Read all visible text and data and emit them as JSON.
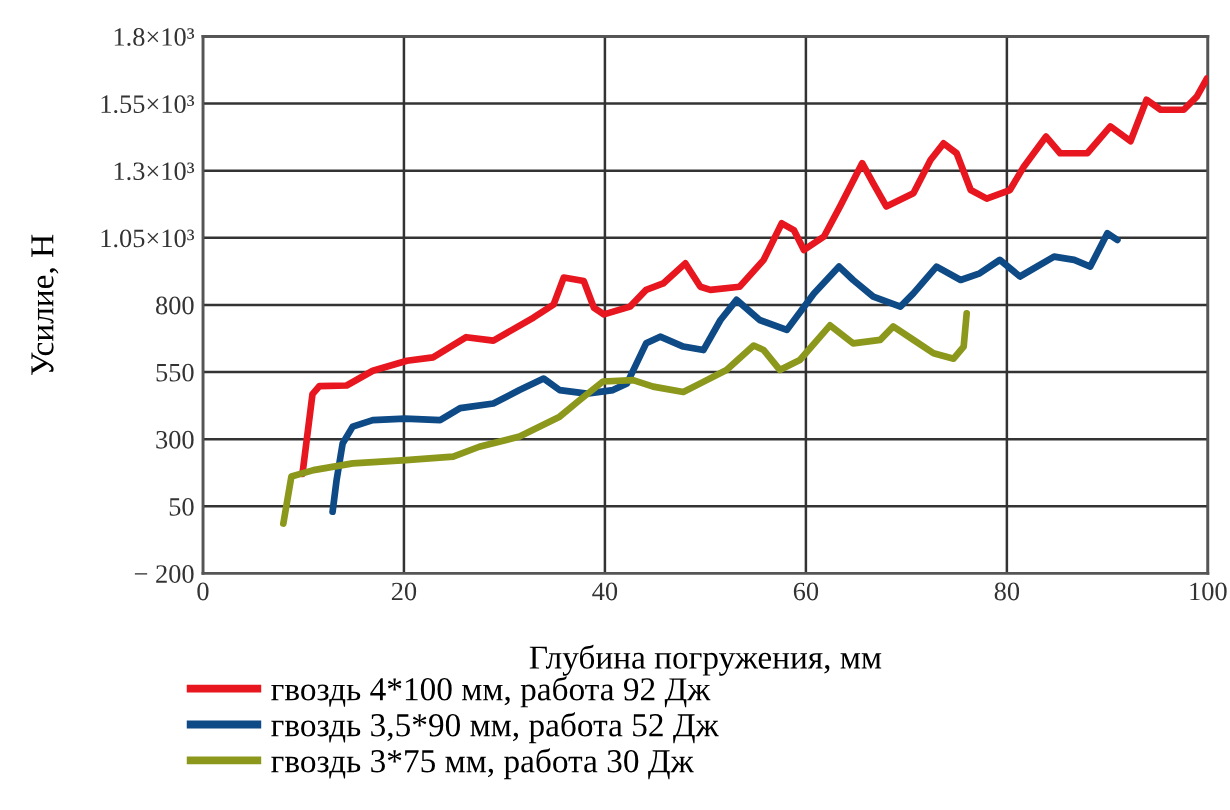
{
  "chart_data": {
    "type": "line",
    "xlabel": "Глубина погружения, мм",
    "ylabel": "Усилие, Н",
    "xlim": [
      0,
      100
    ],
    "xticks": [
      0,
      20,
      40,
      60,
      80,
      100
    ],
    "ylim": [
      -200,
      1800
    ],
    "yticks": [
      {
        "value": -200,
        "label": "− 200"
      },
      50,
      300,
      550,
      800,
      {
        "value": 1050,
        "label": "1.05×10³"
      },
      {
        "value": 1300,
        "label": "1.3×10³"
      },
      {
        "value": 1550,
        "label": "1.55×10³"
      },
      {
        "value": 1800,
        "label": "1.8×10³"
      }
    ],
    "grid": true,
    "legend": "bottom",
    "marker": "none",
    "line_style": "solid",
    "series": [
      {
        "name": "гвоздь 4*100 мм, работа 92 Дж",
        "color": "#e8161e",
        "x": [
          9.9,
          10.9,
          11.6,
          14.3,
          16.9,
          20.3,
          22.9,
          26.2,
          28.9,
          32.9,
          34.9,
          35.9,
          37.9,
          38.9,
          39.9,
          42.5,
          44.1,
          45.8,
          48.0,
          49.5,
          50.5,
          53.4,
          55.8,
          57.6,
          58.8,
          59.8,
          61.8,
          63.4,
          65.6,
          66.7,
          68.0,
          70.7,
          72.4,
          73.7,
          75.0,
          76.4,
          78.0,
          80.3,
          81.7,
          83.9,
          85.3,
          88.0,
          90.3,
          92.3,
          93.9,
          95.3,
          97.6,
          98.9,
          99.9
        ],
        "values": [
          171,
          468,
          498,
          500,
          555,
          592,
          605,
          680,
          667,
          753,
          802,
          902,
          889,
          790,
          765,
          794,
          856,
          880,
          955,
          868,
          856,
          868,
          968,
          1104,
          1079,
          1005,
          1055,
          1167,
          1328,
          1253,
          1167,
          1216,
          1340,
          1402,
          1365,
          1228,
          1196,
          1228,
          1316,
          1427,
          1365,
          1365,
          1465,
          1410,
          1564,
          1527,
          1527,
          1576,
          1643
        ]
      },
      {
        "name": "гвоздь 3,5*90 мм, работа 52 Дж",
        "color": "#0e4a86",
        "x": [
          12.9,
          13.3,
          13.9,
          14.9,
          16.9,
          20.1,
          23.6,
          25.6,
          28.9,
          31.5,
          33.9,
          35.5,
          38.2,
          40.8,
          42.2,
          44.1,
          45.5,
          47.8,
          49.8,
          51.5,
          53.1,
          55.4,
          58.1,
          60.8,
          63.3,
          64.7,
          66.7,
          69.4,
          70.7,
          73.0,
          75.4,
          77.3,
          79.3,
          81.3,
          84.7,
          86.7,
          88.3,
          90.0,
          91.0
        ],
        "values": [
          30,
          148,
          284,
          347,
          371,
          377,
          371,
          416,
          433,
          483,
          526,
          483,
          470,
          483,
          508,
          657,
          682,
          645,
          632,
          744,
          819,
          744,
          707,
          843,
          943,
          893,
          831,
          794,
          843,
          943,
          893,
          918,
          968,
          906,
          980,
          968,
          943,
          1067,
          1042
        ]
      },
      {
        "name": "гвоздь 3*75 мм, работа 30 Дж",
        "color": "#8c981c",
        "x": [
          8.0,
          8.8,
          11.0,
          14.9,
          20.2,
          24.9,
          27.5,
          31.5,
          35.5,
          37.5,
          39.8,
          42.8,
          44.8,
          47.8,
          49.5,
          52.1,
          54.8,
          55.8,
          57.4,
          59.4,
          62.4,
          64.7,
          67.4,
          68.7,
          70.7,
          72.7,
          74.7,
          75.7,
          76.0
        ],
        "values": [
          -14,
          161,
          185,
          210,
          222,
          235,
          272,
          310,
          384,
          446,
          515,
          520,
          496,
          476,
          508,
          558,
          649,
          632,
          558,
          595,
          724,
          657,
          670,
          720,
          670,
          620,
          600,
          645,
          769
        ]
      }
    ]
  }
}
